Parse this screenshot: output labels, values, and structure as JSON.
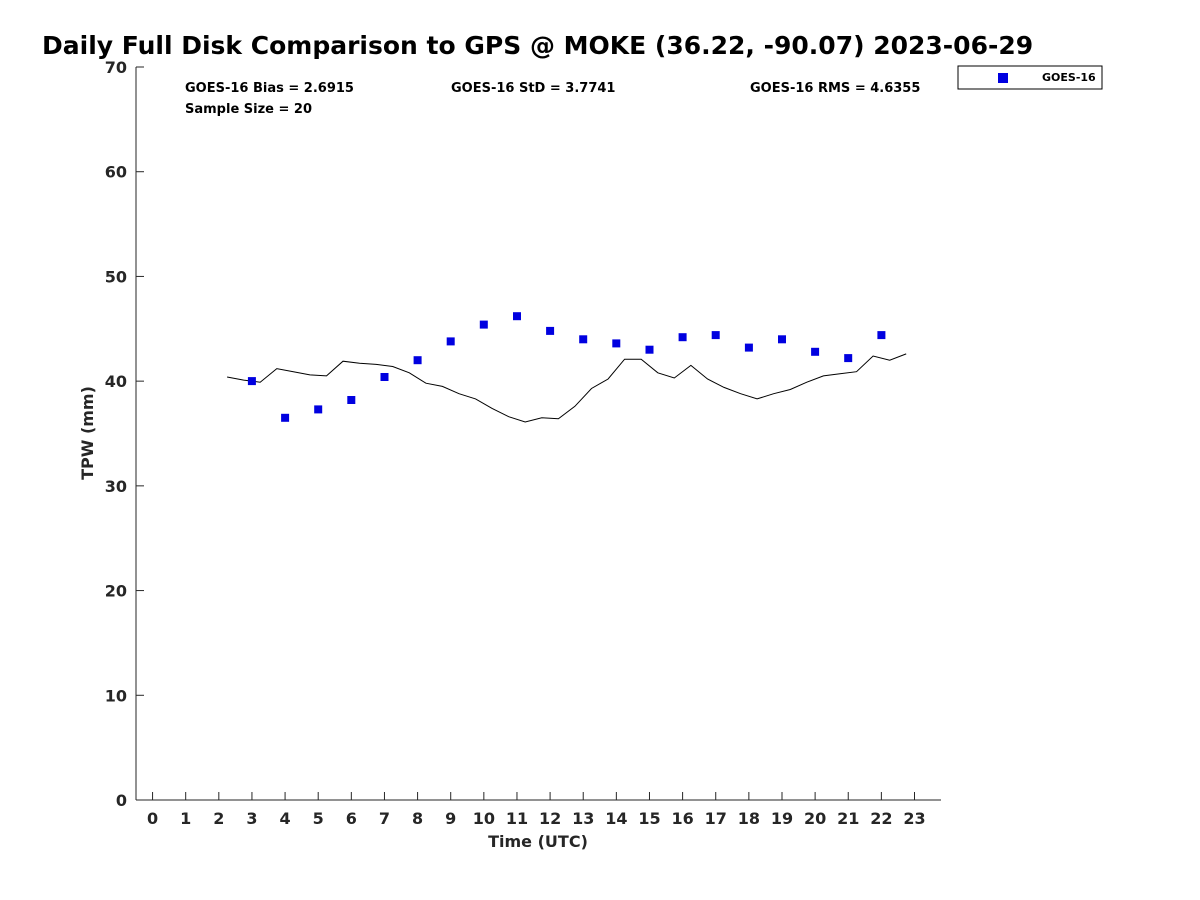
{
  "chart_data": {
    "type": "scatter",
    "title": "Daily Full Disk Comparison to GPS @ MOKE (36.22, -90.07) 2023-06-29",
    "xlabel": "Time (UTC)",
    "ylabel": "TPW (mm)",
    "xlim": [
      -0.5,
      23.8
    ],
    "ylim": [
      0,
      70
    ],
    "xticks": [
      0,
      1,
      2,
      3,
      4,
      5,
      6,
      7,
      8,
      9,
      10,
      11,
      12,
      13,
      14,
      15,
      16,
      17,
      18,
      19,
      20,
      21,
      22,
      23
    ],
    "yticks": [
      0,
      10,
      20,
      30,
      40,
      50,
      60,
      70
    ],
    "legend": {
      "position": "top-right",
      "entries": [
        {
          "label": "GOES-16",
          "color": "#0000e0",
          "marker": "square"
        }
      ]
    },
    "stats": [
      "GOES-16 Bias = 2.6915",
      "GOES-16 StD = 3.7741",
      "GOES-16 RMS = 4.6355",
      "Sample Size = 20"
    ],
    "series": [
      {
        "name": "GOES-16",
        "kind": "scatter",
        "color": "#0000e0",
        "x": [
          3,
          4,
          5,
          6,
          7,
          8,
          9,
          10,
          11,
          12,
          13,
          14,
          15,
          16,
          17,
          18,
          19,
          20,
          21,
          22
        ],
        "y": [
          40.0,
          36.5,
          37.3,
          38.2,
          40.4,
          42.0,
          43.8,
          45.4,
          46.2,
          44.8,
          44.0,
          43.6,
          43.0,
          44.2,
          44.4,
          43.2,
          44.0,
          42.8,
          42.2,
          44.4
        ]
      },
      {
        "kind": "line",
        "color": "#000000",
        "x": [
          2.25,
          2.75,
          3.25,
          3.75,
          4.25,
          4.75,
          5.25,
          5.75,
          6.25,
          6.75,
          7.25,
          7.75,
          8.25,
          8.75,
          9.25,
          9.75,
          10.25,
          10.75,
          11.25,
          11.75,
          12.25,
          12.75,
          13.25,
          13.75,
          14.25,
          14.75,
          15.25,
          15.75,
          16.25,
          16.75,
          17.25,
          17.75,
          18.25,
          18.75,
          19.25,
          19.75,
          20.25,
          20.75,
          21.25,
          21.75,
          22.25,
          22.75
        ],
        "y": [
          40.4,
          40.1,
          39.9,
          41.2,
          40.9,
          40.6,
          40.5,
          41.9,
          41.7,
          41.6,
          41.4,
          40.8,
          39.8,
          39.5,
          38.8,
          38.3,
          37.4,
          36.6,
          36.1,
          36.5,
          36.4,
          37.6,
          39.3,
          40.2,
          42.1,
          42.1,
          40.8,
          40.3,
          41.5,
          40.2,
          39.4,
          38.8,
          38.3,
          38.8,
          39.2,
          39.9,
          40.5,
          40.7,
          40.9,
          42.4,
          42.0,
          42.6
        ]
      }
    ]
  }
}
